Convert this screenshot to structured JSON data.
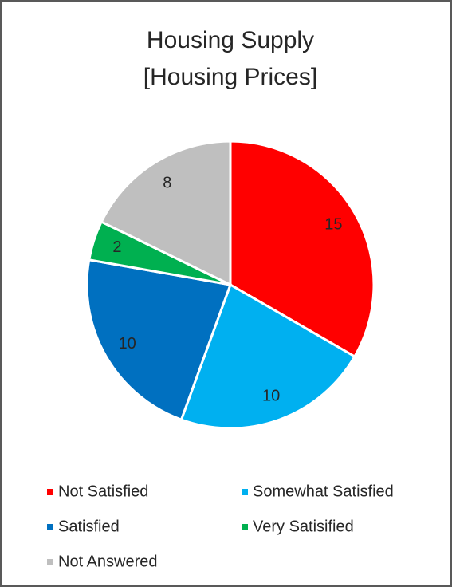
{
  "chart_data": {
    "type": "pie",
    "title": [
      "Housing Supply",
      "[Housing Prices]"
    ],
    "categories": [
      "Not Satisfied",
      "Somewhat Satisfied",
      "Satisfied",
      "Very Satisified",
      "Not Answered"
    ],
    "values": [
      15,
      10,
      10,
      2,
      8
    ],
    "colors": [
      "#ff0000",
      "#00b0f0",
      "#0070c0",
      "#00b050",
      "#bfbfbf"
    ],
    "legend": "bottom"
  }
}
